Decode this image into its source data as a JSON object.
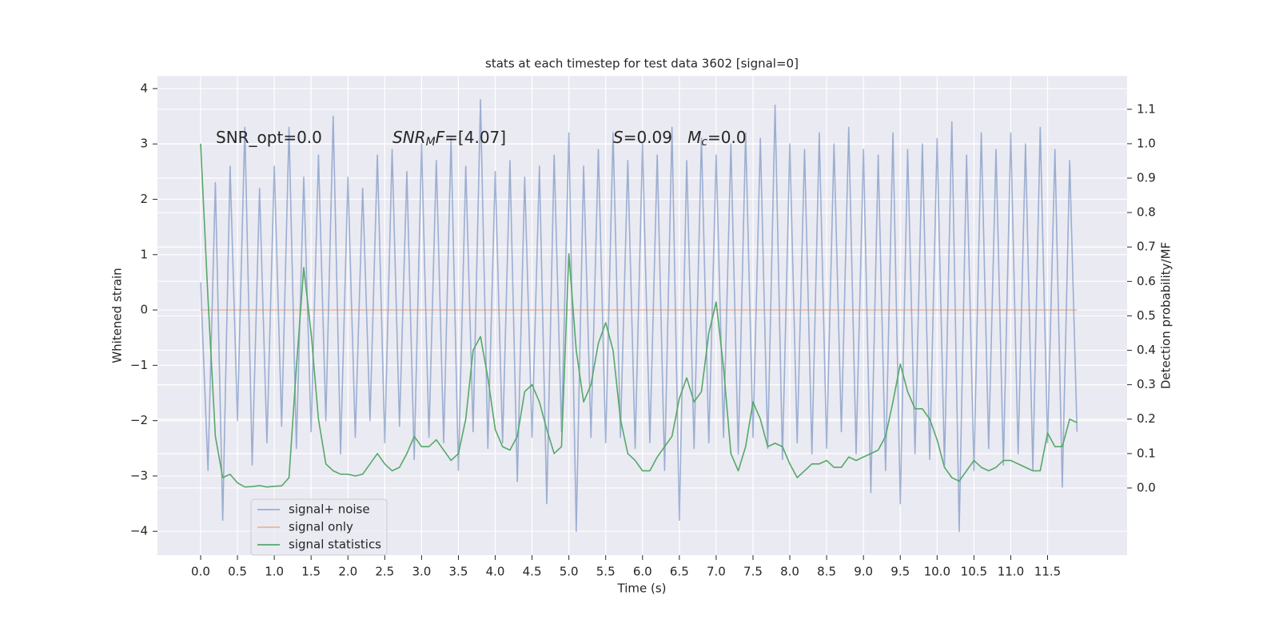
{
  "chart_data": {
    "type": "line",
    "title": "stats at each timestep for test data 3602 [signal=0]",
    "xlabel": "Time (s)",
    "ylabel": "Whitened strain",
    "y2label": "Detection probability/MF",
    "grid": true,
    "legend_loc": "lower left",
    "xlim": [
      -0.586,
      12.58
    ],
    "ylim": [
      -4.43,
      4.23
    ],
    "y2lim": [
      -0.195,
      1.197
    ],
    "xticks": [
      {
        "value": 0,
        "label": "0.0"
      },
      0.5,
      {
        "value": 1,
        "label": "1.0"
      },
      1.5,
      {
        "value": 2,
        "label": "2.0"
      },
      2.5,
      {
        "value": 3,
        "label": "3.0"
      },
      3.5,
      {
        "value": 4,
        "label": "4.0"
      },
      4.5,
      {
        "value": 5,
        "label": "5.0"
      },
      5.5,
      {
        "value": 6,
        "label": "6.0"
      },
      6.5,
      {
        "value": 7,
        "label": "7.0"
      },
      7.5,
      {
        "value": 8,
        "label": "8.0"
      },
      8.5,
      {
        "value": 9,
        "label": "9.0"
      },
      9.5,
      {
        "value": 10,
        "label": "10.0"
      },
      10.5,
      {
        "value": 11,
        "label": "11.0"
      },
      11.5
    ],
    "yticks": [
      {
        "value": -4,
        "label": "−4"
      },
      {
        "value": -3,
        "label": "−3"
      },
      {
        "value": -2,
        "label": "−2"
      },
      {
        "value": -1,
        "label": "−1"
      },
      0,
      1,
      2,
      3,
      4
    ],
    "y2ticks": [
      {
        "value": 0,
        "label": "0.0"
      },
      0.1,
      0.2,
      0.3,
      0.4,
      0.5,
      0.6,
      0.7,
      0.8,
      0.9,
      {
        "value": 1,
        "label": "1.0"
      },
      1.1
    ],
    "annotations": [
      [
        {
          "text": "SNR_opt=0.0"
        }
      ],
      [
        {
          "text": "SNR",
          "italic": true
        },
        {
          "text": "M",
          "italic": true,
          "sub": true
        },
        {
          "text": "F",
          "italic": true
        },
        {
          "text": "=[4.07]"
        }
      ],
      [
        {
          "text": "S",
          "italic": true
        },
        {
          "text": "=0.09   "
        },
        {
          "text": "M",
          "italic": true
        },
        {
          "text": "c",
          "italic": true,
          "sub": true
        },
        {
          "text": "=0.0"
        }
      ]
    ],
    "x": [
      0,
      0.1,
      0.2,
      0.3,
      0.4,
      0.5,
      0.6,
      0.7,
      0.8,
      0.9,
      1,
      1.1,
      1.2,
      1.3,
      1.4,
      1.5,
      1.6,
      1.7,
      1.8,
      1.9,
      2,
      2.1,
      2.2,
      2.3,
      2.4,
      2.5,
      2.6,
      2.7,
      2.8,
      2.9,
      3,
      3.1,
      3.2,
      3.3,
      3.4,
      3.5,
      3.6,
      3.7,
      3.8,
      3.9,
      4,
      4.1,
      4.2,
      4.3,
      4.4,
      4.5,
      4.6,
      4.7,
      4.8,
      4.9,
      5,
      5.1,
      5.2,
      5.3,
      5.4,
      5.5,
      5.6,
      5.7,
      5.8,
      5.9,
      6,
      6.1,
      6.2,
      6.3,
      6.4,
      6.5,
      6.6,
      6.7,
      6.8,
      6.9,
      7,
      7.1,
      7.2,
      7.3,
      7.4,
      7.5,
      7.6,
      7.7,
      7.8,
      7.9,
      8,
      8.1,
      8.2,
      8.3,
      8.4,
      8.5,
      8.6,
      8.7,
      8.8,
      8.9,
      9,
      9.1,
      9.2,
      9.3,
      9.4,
      9.5,
      9.6,
      9.7,
      9.8,
      9.9,
      10,
      10.1,
      10.2,
      10.3,
      10.4,
      10.5,
      10.6,
      10.7,
      10.8,
      10.9,
      11,
      11.1,
      11.2,
      11.3,
      11.4,
      11.5,
      11.6,
      11.7,
      11.8,
      11.9
    ],
    "series": [
      {
        "name": "signal+ noise",
        "color": "#4c72b0",
        "opacity": 0.5,
        "axis": "y",
        "values": [
          0.5,
          -2.9,
          2.3,
          -3.8,
          2.6,
          -2.0,
          3.3,
          -2.8,
          2.2,
          -2.4,
          2.6,
          -2.1,
          3.3,
          -2.5,
          2.4,
          -2.2,
          2.8,
          -2.0,
          3.5,
          -2.6,
          2.4,
          -2.3,
          2.2,
          -2.0,
          2.8,
          -2.4,
          2.9,
          -2.1,
          2.5,
          -2.7,
          3.0,
          -2.3,
          2.7,
          -2.4,
          3.1,
          -2.9,
          2.6,
          -2.2,
          3.8,
          -2.5,
          2.5,
          -2.4,
          2.7,
          -3.1,
          2.4,
          -2.3,
          2.6,
          -3.5,
          2.8,
          -2.2,
          3.2,
          -4.0,
          2.6,
          -2.3,
          2.9,
          -2.4,
          3.2,
          -2.3,
          2.7,
          -2.5,
          3.0,
          -2.4,
          2.8,
          -2.9,
          3.3,
          -3.8,
          2.7,
          -2.5,
          3.1,
          -2.4,
          2.8,
          -2.3,
          3.0,
          -2.6,
          3.2,
          -2.3,
          3.1,
          -2.5,
          3.7,
          -2.7,
          3.0,
          -2.4,
          2.9,
          -2.6,
          3.2,
          -2.5,
          3.0,
          -2.2,
          3.3,
          -2.6,
          2.9,
          -3.3,
          2.8,
          -2.9,
          3.2,
          -3.5,
          2.9,
          -2.6,
          3.0,
          -2.7,
          3.1,
          -2.8,
          3.4,
          -4.0,
          2.8,
          -2.9,
          3.2,
          -2.5,
          2.9,
          -2.8,
          3.2,
          -2.6,
          3.0,
          -2.9,
          3.3,
          -2.4,
          2.9,
          -3.2,
          2.7,
          -2.2
        ]
      },
      {
        "name": "signal only",
        "color": "#dd8452",
        "opacity": 0.5,
        "axis": "y",
        "values": [
          0,
          0,
          0,
          0,
          0,
          0,
          0,
          0,
          0,
          0,
          0,
          0,
          0,
          0,
          0,
          0,
          0,
          0,
          0,
          0,
          0,
          0,
          0,
          0,
          0,
          0,
          0,
          0,
          0,
          0,
          0,
          0,
          0,
          0,
          0,
          0,
          0,
          0,
          0,
          0,
          0,
          0,
          0,
          0,
          0,
          0,
          0,
          0,
          0,
          0,
          0,
          0,
          0,
          0,
          0,
          0,
          0,
          0,
          0,
          0,
          0,
          0,
          0,
          0,
          0,
          0,
          0,
          0,
          0,
          0,
          0,
          0,
          0,
          0,
          0,
          0,
          0,
          0,
          0,
          0,
          0,
          0,
          0,
          0,
          0,
          0,
          0,
          0,
          0,
          0,
          0,
          0,
          0,
          0,
          0,
          0,
          0,
          0,
          0,
          0,
          0,
          0,
          0,
          0,
          0,
          0,
          0,
          0,
          0,
          0,
          0,
          0,
          0,
          0,
          0,
          0,
          0,
          0,
          0,
          0
        ]
      },
      {
        "name": "signal statistics",
        "color": "#55a868",
        "opacity": 1,
        "axis": "y2",
        "values": [
          1.0,
          0.55,
          0.15,
          0.03,
          0.04,
          0.015,
          0.003,
          0.004,
          0.007,
          0.003,
          0.005,
          0.006,
          0.03,
          0.35,
          0.64,
          0.45,
          0.2,
          0.07,
          0.05,
          0.04,
          0.04,
          0.035,
          0.04,
          0.07,
          0.1,
          0.07,
          0.05,
          0.06,
          0.1,
          0.15,
          0.12,
          0.12,
          0.14,
          0.11,
          0.08,
          0.1,
          0.2,
          0.4,
          0.44,
          0.32,
          0.17,
          0.12,
          0.11,
          0.15,
          0.28,
          0.3,
          0.25,
          0.17,
          0.1,
          0.12,
          0.68,
          0.4,
          0.25,
          0.3,
          0.42,
          0.48,
          0.4,
          0.2,
          0.1,
          0.08,
          0.05,
          0.05,
          0.09,
          0.12,
          0.15,
          0.26,
          0.32,
          0.25,
          0.28,
          0.45,
          0.54,
          0.35,
          0.1,
          0.05,
          0.12,
          0.25,
          0.2,
          0.12,
          0.13,
          0.12,
          0.07,
          0.03,
          0.05,
          0.07,
          0.07,
          0.08,
          0.06,
          0.06,
          0.09,
          0.08,
          0.09,
          0.1,
          0.11,
          0.15,
          0.25,
          0.36,
          0.28,
          0.23,
          0.23,
          0.2,
          0.14,
          0.06,
          0.03,
          0.02,
          0.05,
          0.08,
          0.06,
          0.05,
          0.06,
          0.08,
          0.08,
          0.07,
          0.06,
          0.05,
          0.05,
          0.16,
          0.12,
          0.12,
          0.2,
          0.19
        ]
      }
    ]
  }
}
